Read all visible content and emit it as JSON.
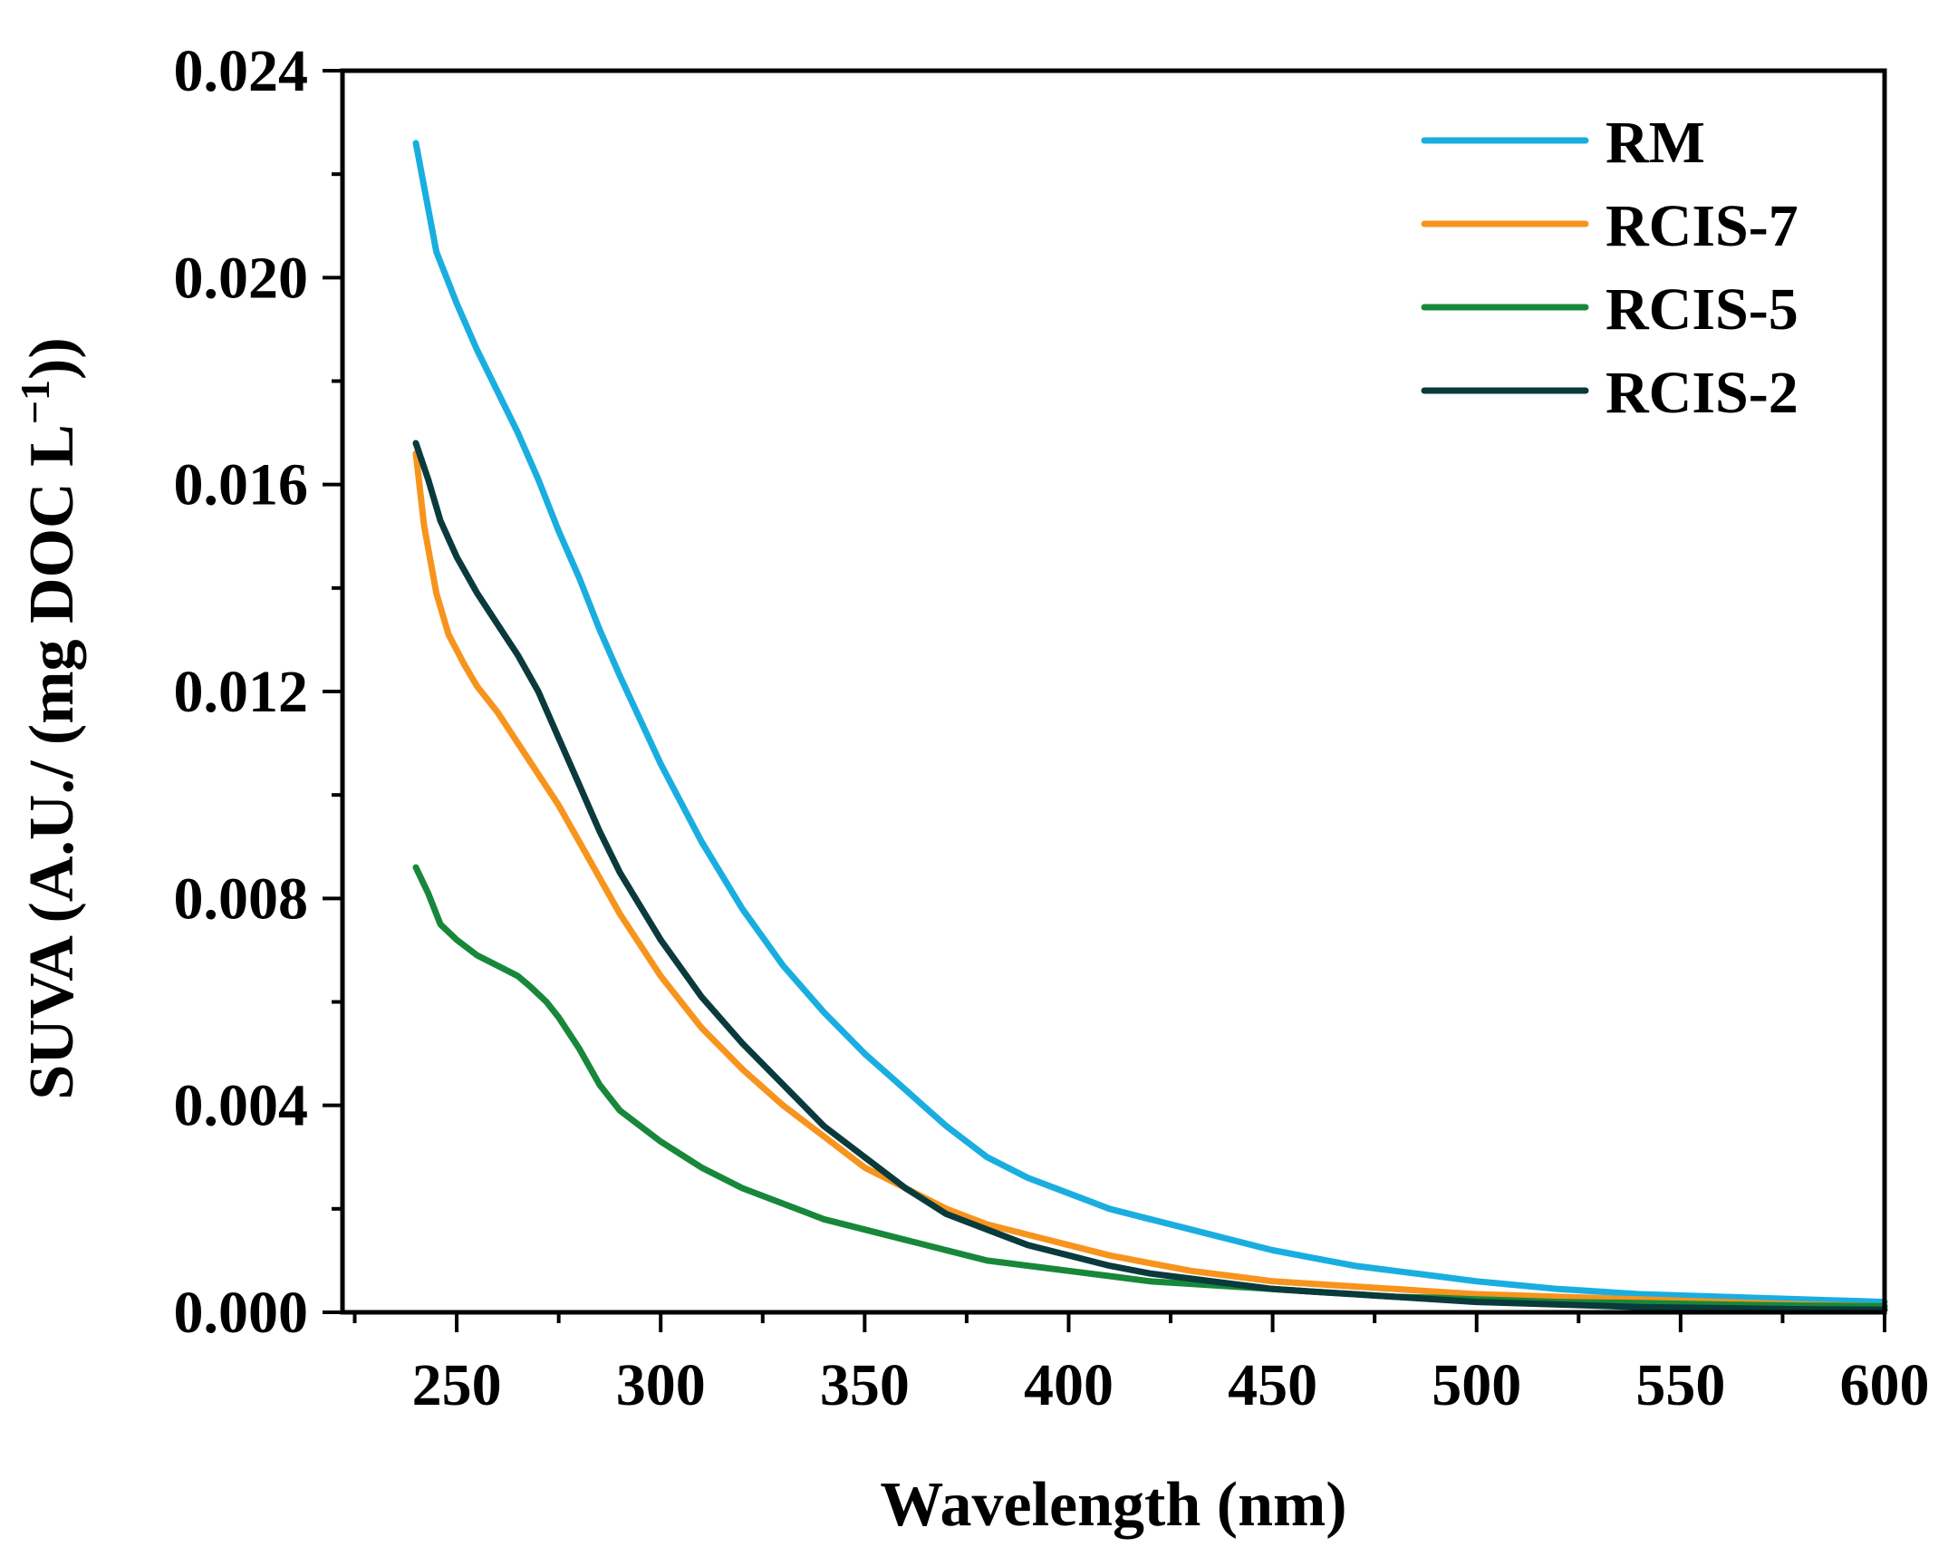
{
  "chart_data": {
    "type": "line",
    "title": "",
    "xlabel": "Wavelength (nm)",
    "ylabel": "SUVA (A.U./ (mg DOC L",
    "ylabel_superscript": "−1",
    "ylabel_suffix": "))",
    "xlim": [
      222,
      600
    ],
    "ylim": [
      0.0,
      0.024
    ],
    "x_ticks": [
      250,
      300,
      350,
      400,
      450,
      500,
      550,
      600
    ],
    "x_tick_labels": [
      "250",
      "300",
      "350",
      "400",
      "450",
      "500",
      "550",
      "600"
    ],
    "y_ticks": [
      0.0,
      0.004,
      0.008,
      0.012,
      0.016,
      0.02,
      0.024
    ],
    "y_tick_labels": [
      "0.000",
      "0.004",
      "0.008",
      "0.012",
      "0.016",
      "0.020",
      "0.024"
    ],
    "grid": false,
    "legend_position": "top-right",
    "series": [
      {
        "name": "RM",
        "color": "#1aaee0",
        "x": [
          240,
          245,
          250,
          255,
          260,
          265,
          270,
          275,
          280,
          285,
          290,
          300,
          310,
          320,
          330,
          340,
          350,
          360,
          370,
          380,
          390,
          400,
          410,
          420,
          430,
          440,
          450,
          460,
          470,
          480,
          490,
          500,
          520,
          540,
          560,
          580,
          600
        ],
        "values": [
          0.0226,
          0.0205,
          0.0195,
          0.0186,
          0.0178,
          0.017,
          0.0161,
          0.0151,
          0.0142,
          0.0132,
          0.0123,
          0.0106,
          0.0091,
          0.0078,
          0.0067,
          0.0058,
          0.005,
          0.0043,
          0.0036,
          0.003,
          0.0026,
          0.0023,
          0.002,
          0.0018,
          0.0016,
          0.0014,
          0.0012,
          0.00105,
          0.0009,
          0.0008,
          0.0007,
          0.0006,
          0.00045,
          0.00035,
          0.0003,
          0.00025,
          0.0002
        ]
      },
      {
        "name": "RCIS-7",
        "color": "#f7941d",
        "x": [
          240,
          242,
          245,
          248,
          252,
          255,
          260,
          265,
          270,
          275,
          280,
          285,
          290,
          300,
          310,
          320,
          330,
          340,
          350,
          360,
          370,
          380,
          390,
          400,
          410,
          420,
          430,
          440,
          450,
          460,
          470,
          480,
          490,
          500,
          520,
          540,
          560,
          580,
          600
        ],
        "values": [
          0.0166,
          0.0152,
          0.0139,
          0.0131,
          0.0125,
          0.0121,
          0.0116,
          0.011,
          0.0104,
          0.0098,
          0.0091,
          0.0084,
          0.0077,
          0.0065,
          0.0055,
          0.0047,
          0.004,
          0.0034,
          0.0028,
          0.0024,
          0.002,
          0.0017,
          0.0015,
          0.0013,
          0.0011,
          0.00095,
          0.0008,
          0.0007,
          0.0006,
          0.00055,
          0.0005,
          0.00045,
          0.0004,
          0.00035,
          0.0003,
          0.00025,
          0.0002,
          0.00015,
          0.00012
        ]
      },
      {
        "name": "RCIS-5",
        "color": "#17883a",
        "x": [
          240,
          243,
          246,
          250,
          255,
          260,
          265,
          268,
          272,
          275,
          280,
          285,
          290,
          300,
          310,
          320,
          330,
          340,
          350,
          360,
          370,
          380,
          390,
          400,
          410,
          420,
          430,
          440,
          450,
          460,
          470,
          480,
          490,
          500,
          520,
          540,
          560,
          580,
          600
        ],
        "values": [
          0.0086,
          0.0081,
          0.0075,
          0.0072,
          0.0069,
          0.0067,
          0.0065,
          0.0063,
          0.006,
          0.0057,
          0.0051,
          0.0044,
          0.0039,
          0.0033,
          0.0028,
          0.0024,
          0.0021,
          0.0018,
          0.0016,
          0.0014,
          0.0012,
          0.001,
          0.0009,
          0.0008,
          0.0007,
          0.0006,
          0.00055,
          0.0005,
          0.00045,
          0.0004,
          0.00035,
          0.0003,
          0.00028,
          0.00025,
          0.0002,
          0.00018,
          0.00015,
          0.00013,
          0.00012
        ]
      },
      {
        "name": "RCIS-2",
        "color": "#0a3a3c",
        "x": [
          240,
          243,
          246,
          250,
          255,
          260,
          265,
          270,
          275,
          280,
          285,
          290,
          300,
          310,
          320,
          330,
          340,
          350,
          360,
          370,
          380,
          390,
          400,
          410,
          420,
          430,
          440,
          450,
          460,
          470,
          480,
          490,
          500,
          520,
          540,
          560,
          580,
          600
        ],
        "values": [
          0.0168,
          0.0161,
          0.0153,
          0.0146,
          0.0139,
          0.0133,
          0.0127,
          0.012,
          0.0111,
          0.0102,
          0.0093,
          0.0085,
          0.0072,
          0.0061,
          0.0052,
          0.0044,
          0.0036,
          0.003,
          0.0024,
          0.0019,
          0.0016,
          0.0013,
          0.0011,
          0.0009,
          0.00075,
          0.00065,
          0.00055,
          0.00045,
          0.0004,
          0.00035,
          0.0003,
          0.00025,
          0.0002,
          0.00015,
          0.0001,
          8e-05,
          6e-05,
          5e-05
        ]
      }
    ]
  }
}
